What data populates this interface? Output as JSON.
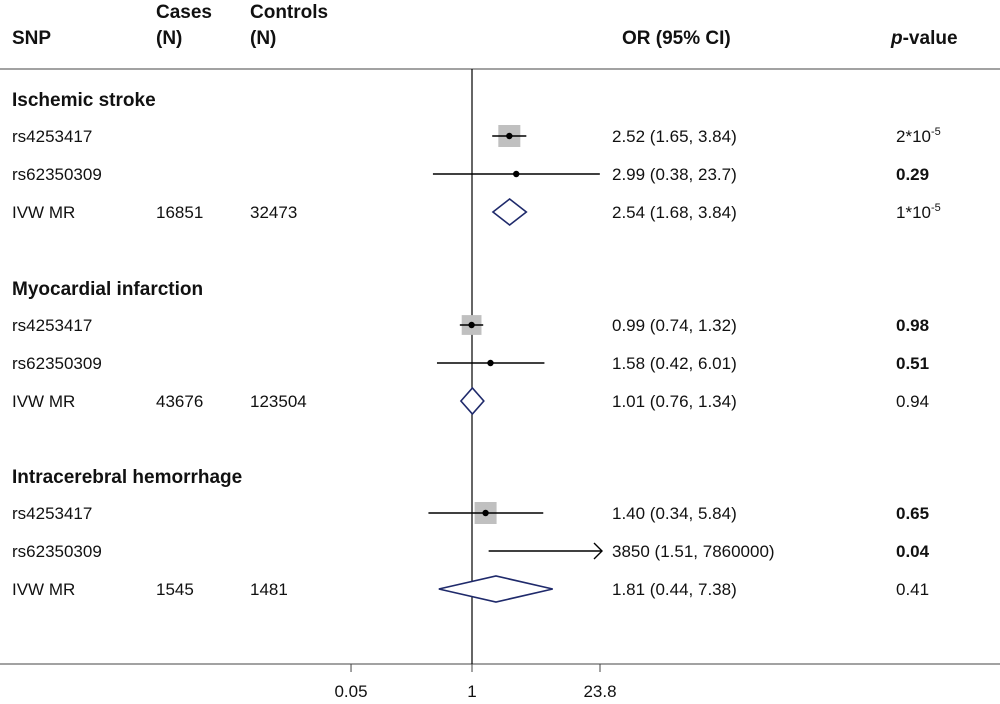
{
  "header": {
    "snp": "SNP",
    "cases_line1": "Cases",
    "cases_line2": "(N)",
    "controls_line1": "Controls",
    "controls_line2": "(N)",
    "or": "OR (95% CI)",
    "p_italic": "p",
    "p_rest": "-value"
  },
  "axis": {
    "scale": "log",
    "ticks": [
      {
        "value": 0.05,
        "label": "0.05"
      },
      {
        "value": 1,
        "label": "1"
      },
      {
        "value": 23.8,
        "label": "23.8"
      }
    ],
    "reference_value": 1
  },
  "colors": {
    "square": "#c0c0c0",
    "diamond": "#1f2a6b",
    "line": "#000000"
  },
  "chart_data": {
    "type": "forest",
    "scale": "log",
    "reference_value": 1,
    "groups": [
      {
        "title": "Ischemic stroke",
        "rows": [
          {
            "label": "rs4253417",
            "cases": "",
            "controls": "",
            "or": 2.52,
            "lo": 1.65,
            "hi": 3.84,
            "or_text": "2.52 (1.65, 3.84)",
            "p_base": "2*10",
            "p_exp": "-5",
            "p_bold": false,
            "marker": "square",
            "weight": 1.0
          },
          {
            "label": "rs62350309",
            "cases": "",
            "controls": "",
            "or": 2.99,
            "lo": 0.38,
            "hi": 23.7,
            "or_text": "2.99 (0.38, 23.7)",
            "p_base": "0.29",
            "p_exp": "",
            "p_bold": true,
            "marker": "dot",
            "weight": 0
          },
          {
            "label": "IVW MR",
            "cases": "16851",
            "controls": "32473",
            "or": 2.54,
            "lo": 1.68,
            "hi": 3.84,
            "or_text": "2.54 (1.68, 3.84)",
            "p_base": "1*10",
            "p_exp": "-5",
            "p_bold": false,
            "marker": "diamond",
            "weight": 0
          }
        ]
      },
      {
        "title": "Myocardial infarction",
        "rows": [
          {
            "label": "rs4253417",
            "cases": "",
            "controls": "",
            "or": 0.99,
            "lo": 0.74,
            "hi": 1.32,
            "or_text": "0.99 (0.74, 1.32)",
            "p_base": "0.98",
            "p_exp": "",
            "p_bold": true,
            "marker": "square",
            "weight": 0.9
          },
          {
            "label": "rs62350309",
            "cases": "",
            "controls": "",
            "or": 1.58,
            "lo": 0.42,
            "hi": 6.01,
            "or_text": "1.58 (0.42, 6.01)",
            "p_base": "0.51",
            "p_exp": "",
            "p_bold": true,
            "marker": "dot",
            "weight": 0
          },
          {
            "label": "IVW MR",
            "cases": "43676",
            "controls": "123504",
            "or": 1.01,
            "lo": 0.76,
            "hi": 1.34,
            "or_text": "1.01 (0.76, 1.34)",
            "p_base": "0.94",
            "p_exp": "",
            "p_bold": false,
            "marker": "diamond",
            "weight": 0
          }
        ]
      },
      {
        "title": "Intracerebral hemorrhage",
        "rows": [
          {
            "label": "rs4253417",
            "cases": "",
            "controls": "",
            "or": 1.4,
            "lo": 0.34,
            "hi": 5.84,
            "or_text": "1.40 (0.34, 5.84)",
            "p_base": "0.65",
            "p_exp": "",
            "p_bold": true,
            "marker": "square",
            "weight": 1.0
          },
          {
            "label": "rs62350309",
            "cases": "",
            "controls": "",
            "or": 3850,
            "lo": 1.51,
            "hi": 7860000,
            "or_text": "3850 (1.51, 7860000)",
            "p_base": "0.04",
            "p_exp": "",
            "p_bold": true,
            "marker": "arrow",
            "weight": 0
          },
          {
            "label": "IVW MR",
            "cases": "1545",
            "controls": "1481",
            "or": 1.81,
            "lo": 0.44,
            "hi": 7.38,
            "or_text": "1.81 (0.44, 7.38)",
            "p_base": "0.41",
            "p_exp": "",
            "p_bold": false,
            "marker": "diamond",
            "weight": 0
          }
        ]
      }
    ]
  }
}
